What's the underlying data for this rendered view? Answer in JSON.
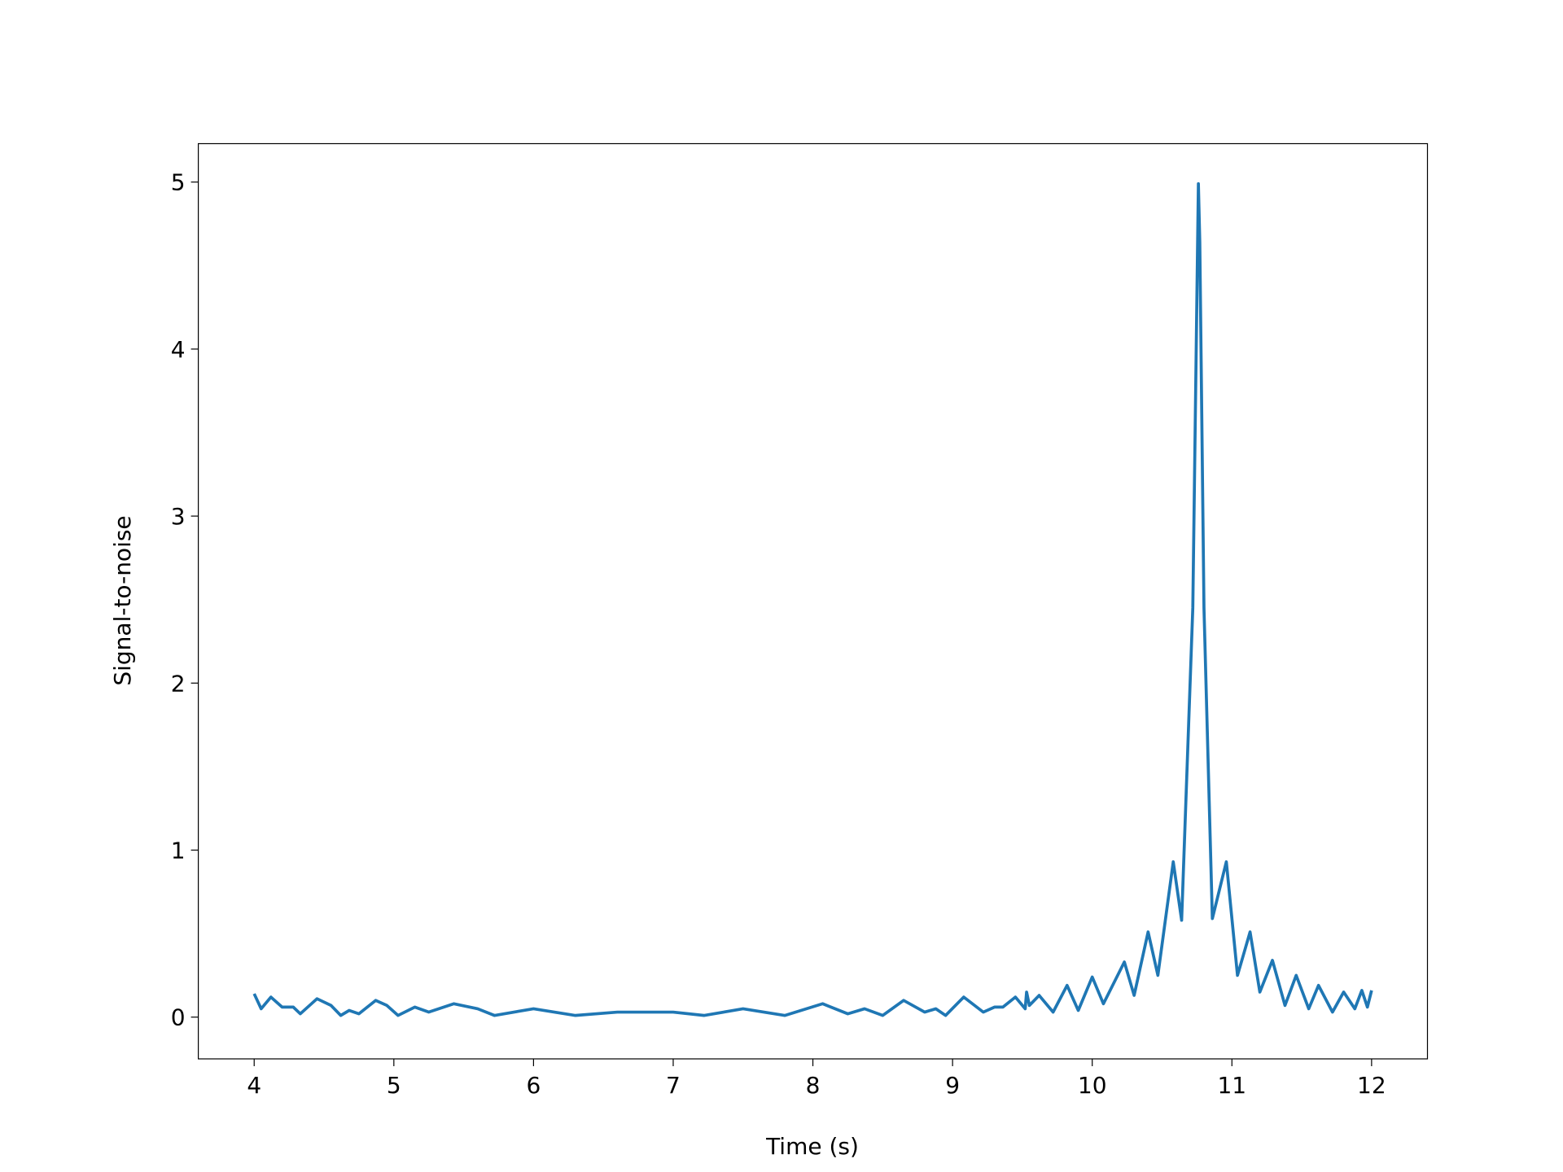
{
  "chart_data": {
    "type": "line",
    "xlabel": "Time (s)",
    "ylabel": "Signal-to-noise",
    "x": [
      4.0,
      4.05,
      4.12,
      4.2,
      4.28,
      4.33,
      4.45,
      4.55,
      4.62,
      4.68,
      4.75,
      4.87,
      4.95,
      5.03,
      5.15,
      5.25,
      5.43,
      5.6,
      5.72,
      6.0,
      6.3,
      6.6,
      7.0,
      7.22,
      7.5,
      7.8,
      8.07,
      8.25,
      8.37,
      8.5,
      8.65,
      8.8,
      8.88,
      8.95,
      9.08,
      9.22,
      9.3,
      9.36,
      9.45,
      9.52,
      9.53,
      9.55,
      9.62,
      9.72,
      9.82,
      9.9,
      10.0,
      10.08,
      10.23,
      10.3,
      10.4,
      10.47,
      10.58,
      10.64,
      10.72,
      10.76,
      10.77,
      10.8,
      10.86,
      10.96,
      11.04,
      11.13,
      11.2,
      11.29,
      11.38,
      11.46,
      11.55,
      11.62,
      11.72,
      11.8,
      11.88,
      11.93,
      11.97,
      12.0
    ],
    "series": [
      {
        "color": "#1f77b4",
        "values": [
          0.14,
          0.05,
          0.12,
          0.06,
          0.06,
          0.02,
          0.11,
          0.07,
          0.01,
          0.04,
          0.02,
          0.1,
          0.07,
          0.01,
          0.06,
          0.03,
          0.08,
          0.05,
          0.01,
          0.05,
          0.01,
          0.03,
          0.03,
          0.01,
          0.05,
          0.01,
          0.08,
          0.02,
          0.05,
          0.01,
          0.1,
          0.03,
          0.05,
          0.01,
          0.12,
          0.03,
          0.06,
          0.06,
          0.12,
          0.05,
          0.15,
          0.07,
          0.13,
          0.03,
          0.19,
          0.04,
          0.24,
          0.08,
          0.33,
          0.13,
          0.51,
          0.25,
          0.93,
          0.58,
          2.45,
          4.99,
          4.64,
          2.45,
          0.59,
          0.93,
          0.25,
          0.51,
          0.15,
          0.34,
          0.07,
          0.25,
          0.05,
          0.19,
          0.03,
          0.15,
          0.05,
          0.16,
          0.06,
          0.16
        ]
      }
    ],
    "xlim": [
      3.6,
      12.4
    ],
    "ylim": [
      -0.25,
      5.23
    ],
    "xticks": [
      4,
      5,
      6,
      7,
      8,
      9,
      10,
      11,
      12
    ],
    "yticks": [
      0,
      1,
      2,
      3,
      4,
      5
    ]
  }
}
